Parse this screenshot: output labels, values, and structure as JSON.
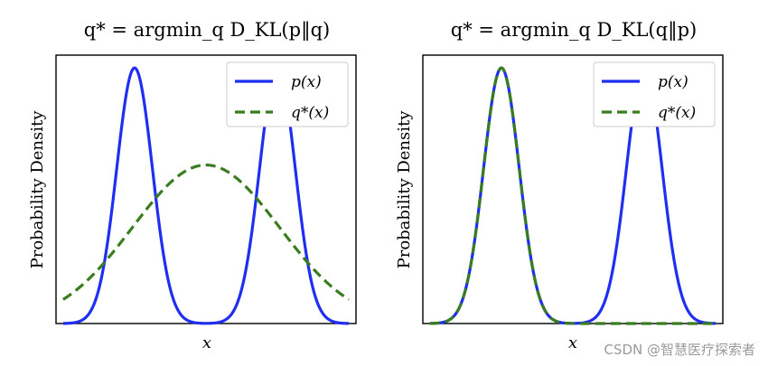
{
  "chart_data": [
    {
      "type": "line",
      "title": "q* = argmin_q D_KL(p‖q)",
      "xlabel": "x",
      "ylabel": "Probability Density",
      "xlim": [
        -4.2,
        4.2
      ],
      "ylim": [
        0,
        1.05
      ],
      "legend": "top-right",
      "grid": false,
      "series": [
        {
          "name": "p(x)",
          "style": "solid",
          "color": "#1f2ef0",
          "kind": "mixture",
          "components": [
            {
              "mu": -2,
              "sigma": 0.5,
              "w": 1
            },
            {
              "mu": 2,
              "sigma": 0.5,
              "w": 1
            }
          ]
        },
        {
          "name": "q*(x)",
          "style": "dashed",
          "color": "#3a7d20",
          "kind": "gaussian",
          "mu": 0,
          "sigma": 2.06,
          "peak": 0.62
        }
      ]
    },
    {
      "type": "line",
      "title": "q* = argmin_q D_KL(q‖p)",
      "xlabel": "x",
      "ylabel": "Probability Density",
      "xlim": [
        -4.2,
        4.2
      ],
      "ylim": [
        0,
        1.05
      ],
      "legend": "top-right",
      "grid": false,
      "series": [
        {
          "name": "p(x)",
          "style": "solid",
          "color": "#1f2ef0",
          "kind": "mixture",
          "components": [
            {
              "mu": -2,
              "sigma": 0.5,
              "w": 1
            },
            {
              "mu": 2,
              "sigma": 0.5,
              "w": 1
            }
          ]
        },
        {
          "name": "q*(x)",
          "style": "dashed",
          "color": "#3a7d20",
          "kind": "gaussian",
          "mu": -2,
          "sigma": 0.5,
          "peak": 1.0
        }
      ]
    }
  ],
  "watermark": "CSDN @智慧医疗探索者"
}
